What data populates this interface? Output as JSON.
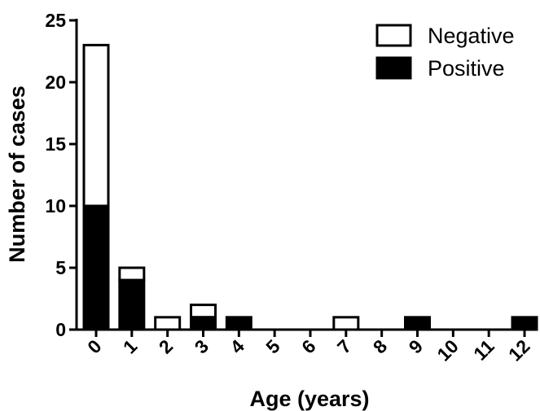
{
  "chart_data": {
    "type": "bar",
    "stacked": true,
    "categories": [
      "0",
      "1",
      "2",
      "3",
      "4",
      "5",
      "6",
      "7",
      "8",
      "9",
      "10",
      "11",
      "12"
    ],
    "series": [
      {
        "name": "Positive",
        "values": [
          10,
          4,
          0,
          1,
          1,
          0,
          0,
          0,
          0,
          1,
          0,
          0,
          1
        ],
        "color": "#000000"
      },
      {
        "name": "Negative",
        "values": [
          13,
          1,
          1,
          1,
          0,
          0,
          0,
          1,
          0,
          0,
          0,
          0,
          0
        ],
        "color": "#ffffff"
      }
    ],
    "xlabel": "Age (years)",
    "ylabel": "Number of cases",
    "ylim": [
      0,
      25
    ],
    "yticks": [
      "0",
      "5",
      "10",
      "15",
      "20",
      "25"
    ],
    "grid": false,
    "legend_position": "top-right",
    "legend": [
      "Negative",
      "Positive"
    ]
  }
}
